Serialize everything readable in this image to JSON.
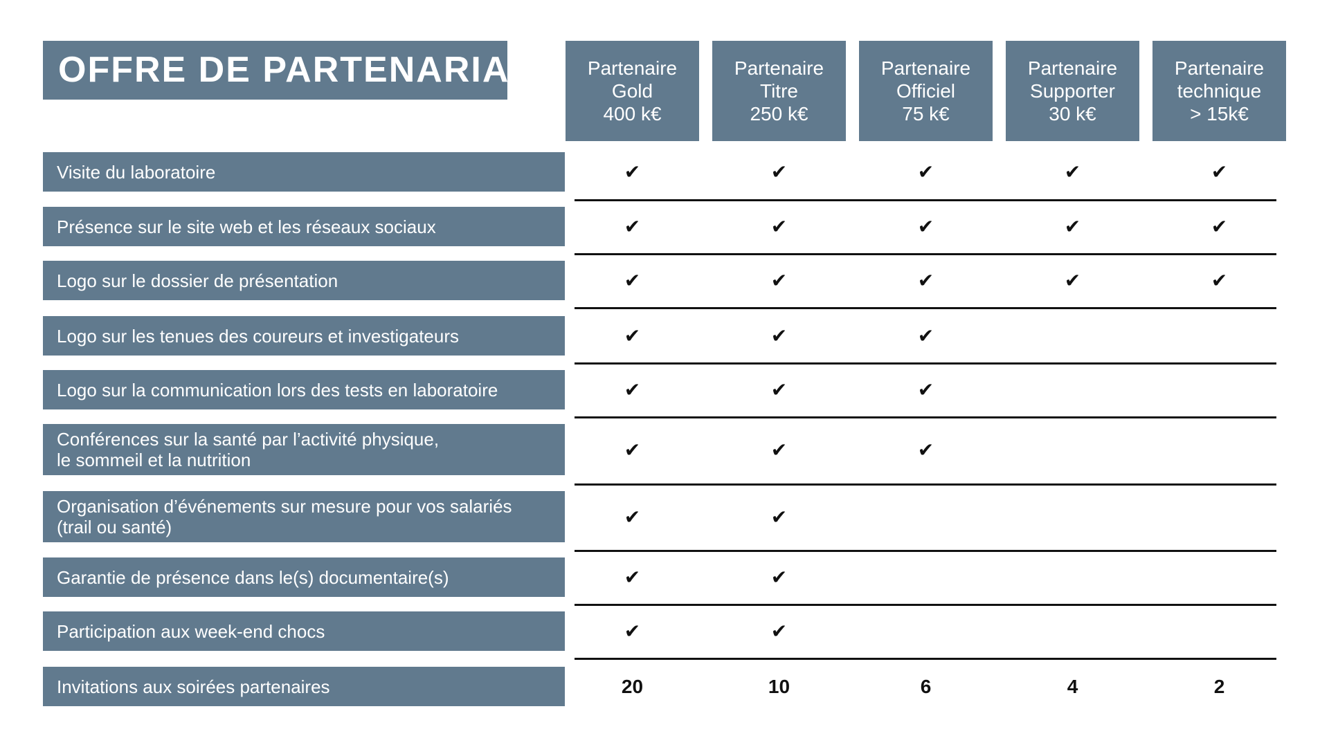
{
  "title": "OFFRE DE PARTENARIAT",
  "colors": {
    "box": "#617a8e",
    "text": "#ffffff",
    "check": "#111111"
  },
  "columns": [
    {
      "line1": "Partenaire",
      "line2": "Gold",
      "line3": "400 k€"
    },
    {
      "line1": "Partenaire",
      "line2": "Titre",
      "line3": "250 k€"
    },
    {
      "line1": "Partenaire",
      "line2": "Officiel",
      "line3": "75 k€"
    },
    {
      "line1": "Partenaire",
      "line2": "Supporter",
      "line3": "30 k€"
    },
    {
      "line1": "Partenaire",
      "line2": "technique",
      "line3": "> 15k€"
    }
  ],
  "check_symbol": "✔",
  "rows": [
    {
      "label": "Visite du laboratoire",
      "values": [
        true,
        true,
        true,
        true,
        true
      ]
    },
    {
      "label": "Présence sur le site web et les réseaux sociaux",
      "values": [
        true,
        true,
        true,
        true,
        true
      ]
    },
    {
      "label": "Logo sur le dossier de présentation",
      "values": [
        true,
        true,
        true,
        true,
        true
      ]
    },
    {
      "label": "Logo sur les tenues des coureurs et investigateurs",
      "values": [
        true,
        true,
        true,
        false,
        false
      ]
    },
    {
      "label": "Logo sur la communication lors des tests en laboratoire",
      "values": [
        true,
        true,
        true,
        false,
        false
      ]
    },
    {
      "label": "Conférences sur la santé par l’activité physique,",
      "label2": "le sommeil et la nutrition",
      "values": [
        true,
        true,
        true,
        false,
        false
      ]
    },
    {
      "label": "Organisation d’événements sur mesure pour vos salariés",
      "label2": "(trail ou santé)",
      "values": [
        true,
        true,
        false,
        false,
        false
      ]
    },
    {
      "label": "Garantie de présence dans le(s) documentaire(s)",
      "values": [
        true,
        true,
        false,
        false,
        false
      ]
    },
    {
      "label": "Participation aux week-end chocs",
      "values": [
        true,
        true,
        false,
        false,
        false
      ]
    },
    {
      "label": "Invitations aux soirées partenaires",
      "values": [
        "20",
        "10",
        "6",
        "4",
        "2"
      ]
    }
  ]
}
